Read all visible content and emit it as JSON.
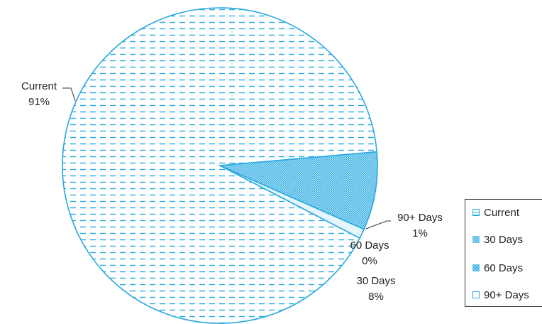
{
  "chart_data": {
    "type": "pie",
    "title": "",
    "slices": [
      {
        "label": "Current",
        "value": 91,
        "pct_label": "91%"
      },
      {
        "label": "30 Days",
        "value": 8,
        "pct_label": "8%"
      },
      {
        "label": "60 Days",
        "value": 0,
        "pct_label": "0%"
      },
      {
        "label": "90+ Days",
        "value": 1,
        "pct_label": "1%"
      }
    ],
    "legend": {
      "placement": "right",
      "entries": [
        "Current",
        "30 Days",
        "60 Days",
        "90+ Days"
      ]
    },
    "colors": {
      "outline": "#29a9df",
      "fill_light": "#e6f5fc",
      "pattern": "#29a9df"
    }
  }
}
